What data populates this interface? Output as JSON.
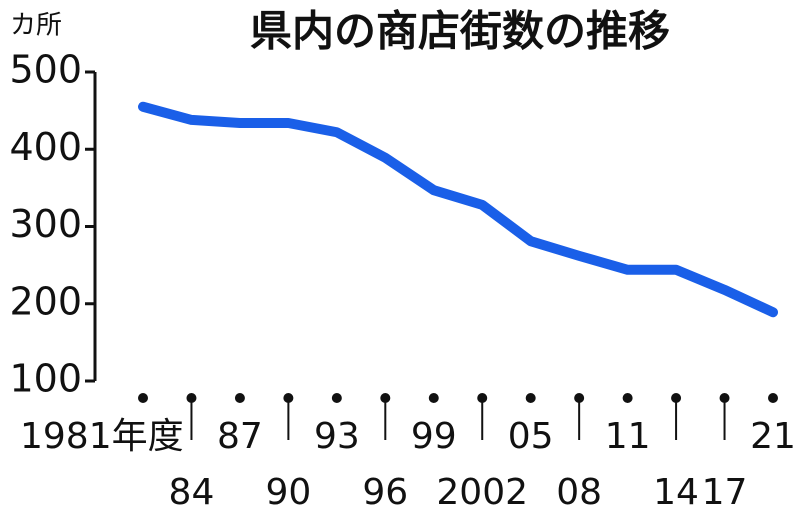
{
  "chart_data": {
    "type": "line",
    "title": "県内の商店街数の推移",
    "unit": "カ所",
    "categories": [
      "1981年度",
      "84",
      "87",
      "90",
      "93",
      "96",
      "99",
      "2002",
      "05",
      "08",
      "11",
      "14",
      "17",
      "21"
    ],
    "values": [
      455,
      438,
      434,
      434,
      422,
      389,
      347,
      328,
      281,
      262,
      244,
      244,
      218,
      189
    ],
    "color": "#1a5fe8",
    "ylim": [
      100,
      500
    ],
    "yticks": [
      100,
      200,
      300,
      400,
      500
    ]
  }
}
